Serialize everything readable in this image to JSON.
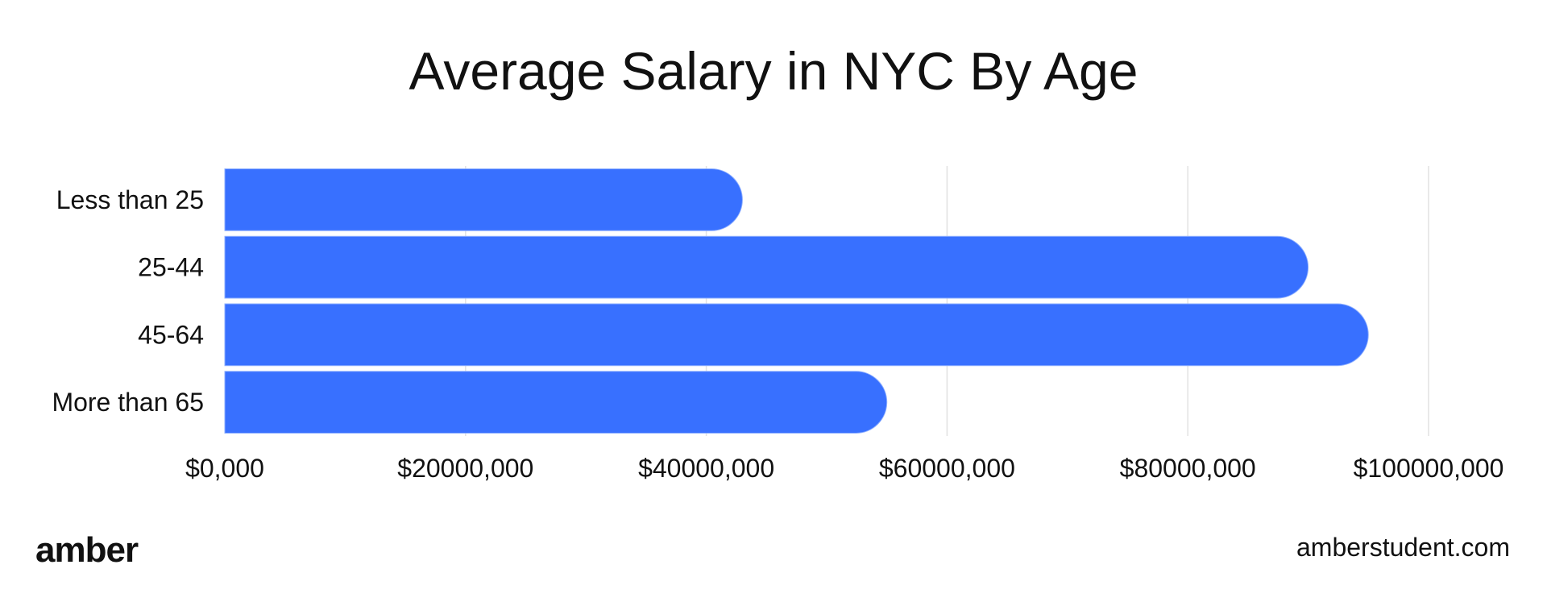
{
  "chart_data": {
    "type": "bar",
    "orientation": "horizontal",
    "title": "Average Salary in NYC By Age",
    "categories": [
      "Less than 25",
      "25-44",
      "45-64",
      "More than 65"
    ],
    "values": [
      43000000,
      90000000,
      95000000,
      55000000
    ],
    "xlabel": "",
    "ylabel": "",
    "xlim": [
      0,
      100000000
    ],
    "x_ticks": [
      0,
      20000000,
      40000000,
      60000000,
      80000000,
      100000000
    ],
    "x_tick_labels": [
      "$0,000",
      "$20000,000",
      "$40000,000",
      "$60000,000",
      "$80000,000",
      "$100000,000"
    ],
    "grid": "vertical",
    "bar_color": "#3870FF",
    "grid_color": "#E2E2E2"
  },
  "footer": {
    "brand": "amber",
    "site": "amberstudent.com"
  }
}
